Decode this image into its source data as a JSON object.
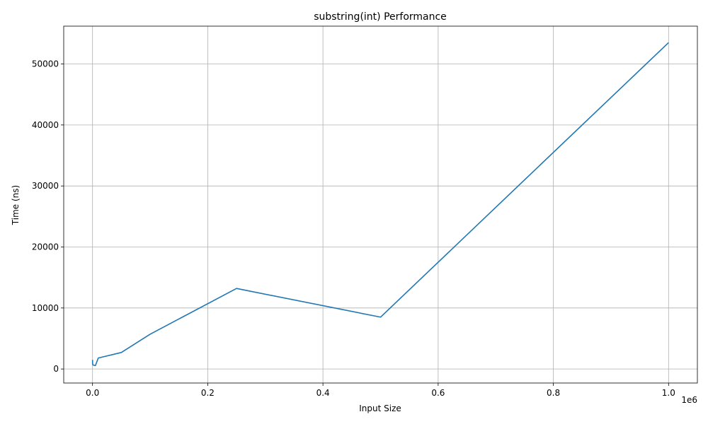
{
  "chart_data": {
    "type": "line",
    "title": "substring(int) Performance",
    "xlabel": "Input Size",
    "ylabel": "Time (ns)",
    "x_offset_label": "1e6",
    "xlim": [
      -50000,
      1050000
    ],
    "ylim": [
      -2300,
      56200
    ],
    "grid": true,
    "line_color": "#1f77b4",
    "x_ticks": [
      0,
      200000,
      400000,
      600000,
      800000,
      1000000
    ],
    "x_tick_labels": [
      "0.0",
      "0.2",
      "0.4",
      "0.6",
      "0.8",
      "1.0"
    ],
    "y_ticks": [
      0,
      10000,
      20000,
      30000,
      40000,
      50000
    ],
    "y_tick_labels": [
      "0",
      "10000",
      "20000",
      "30000",
      "40000",
      "50000"
    ],
    "series": [
      {
        "x": [
          10,
          50,
          100,
          500,
          1000,
          5000,
          10000,
          50000,
          100000,
          250000,
          500000,
          1000000
        ],
        "y": [
          1500,
          1100,
          900,
          700,
          650,
          550,
          1800,
          2700,
          5700,
          13200,
          8500,
          53500
        ]
      }
    ]
  }
}
